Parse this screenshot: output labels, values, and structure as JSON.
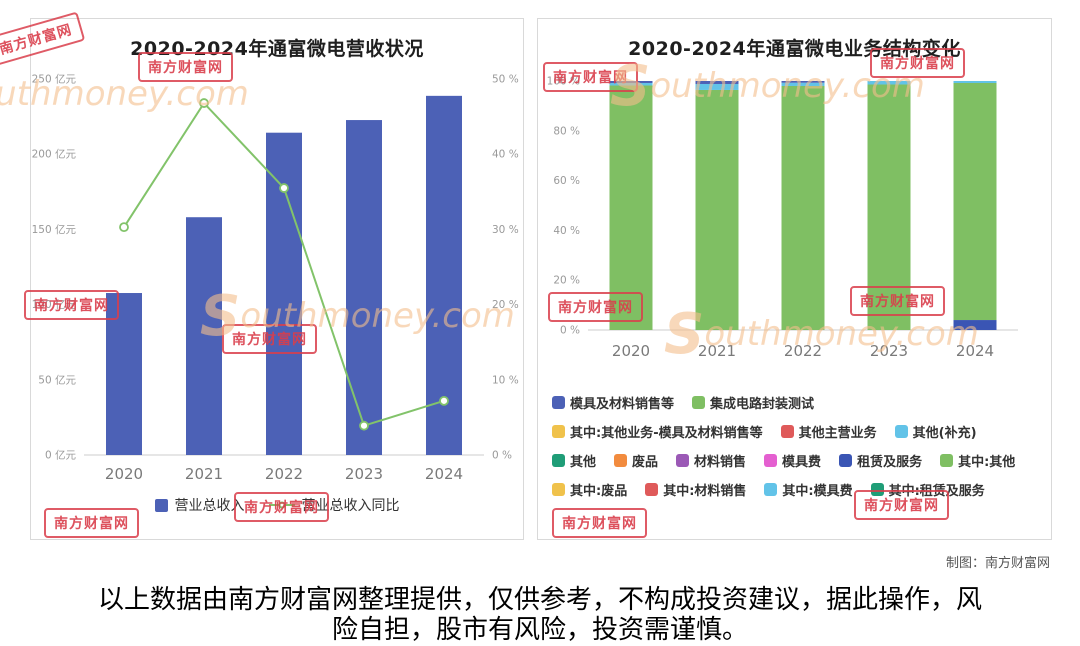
{
  "chart_data": [
    {
      "type": "bar+line",
      "title": "2020-2024年通富微电营收状况",
      "categories": [
        "2020",
        "2021",
        "2022",
        "2023",
        "2024"
      ],
      "series": [
        {
          "name": "营业总收入",
          "type": "bar",
          "axis": "left",
          "unit": "亿元",
          "values": [
            107.7,
            158.1,
            214.3,
            222.7,
            238.8
          ],
          "color": "#4c61b6"
        },
        {
          "name": "营业总收入同比",
          "type": "line",
          "axis": "right",
          "unit": "%",
          "values": [
            30.3,
            46.8,
            35.5,
            3.9,
            7.2
          ],
          "color": "#82c36a"
        }
      ],
      "y_left": {
        "min": 0,
        "max": 250,
        "tick_labels": [
          "0 亿元",
          "50 亿元",
          "100 亿元",
          "150 亿元",
          "200 亿元",
          "250 亿元"
        ]
      },
      "y_right": {
        "min": 0,
        "max": 50,
        "tick_labels": [
          "0 %",
          "10 %",
          "20 %",
          "30 %",
          "40 %",
          "50 %"
        ]
      },
      "grid": false,
      "legend_position": "bottom"
    },
    {
      "type": "stacked-bar",
      "title": "2020-2024年通富微电业务结构变化",
      "categories": [
        "2020",
        "2021",
        "2022",
        "2023",
        "2024"
      ],
      "y": {
        "min": 0,
        "max": 100,
        "tick_labels": [
          "0 %",
          "20 %",
          "40 %",
          "60 %",
          "80 %",
          "100 %"
        ]
      },
      "stacks": [
        [
          {
            "name": "集成电路封装测试",
            "value": 98.2,
            "color": "#7fbf63"
          },
          {
            "name": "其他(补充)",
            "value": 1.0,
            "color": "#62c3e8"
          },
          {
            "name": "模具及材料销售等",
            "value": 0.8,
            "color": "#4c61b6"
          }
        ],
        [
          {
            "name": "集成电路封装测试",
            "value": 96.4,
            "color": "#7fbf63"
          },
          {
            "name": "其他(补充)",
            "value": 2.4,
            "color": "#62c3e8"
          },
          {
            "name": "模具及材料销售等",
            "value": 1.2,
            "color": "#4c61b6"
          }
        ],
        [
          {
            "name": "集成电路封装测试",
            "value": 98.0,
            "color": "#7fbf63"
          },
          {
            "name": "其他(补充)",
            "value": 1.3,
            "color": "#62c3e8"
          },
          {
            "name": "模具及材料销售等",
            "value": 0.7,
            "color": "#4c61b6"
          }
        ],
        [
          {
            "name": "集成电路封装测试",
            "value": 98.6,
            "color": "#7fbf63"
          },
          {
            "name": "其他(补充)",
            "value": 1.4,
            "color": "#62c3e8"
          }
        ],
        [
          {
            "name": "租赁及服务",
            "value": 4.0,
            "color": "#3a55b4"
          },
          {
            "name": "集成电路封装测试",
            "value": 95.2,
            "color": "#7fbf63"
          },
          {
            "name": "其他(补充)",
            "value": 0.8,
            "color": "#62c3e8"
          }
        ]
      ],
      "legend": [
        {
          "label": "模具及材料销售等",
          "color": "#4c61b6"
        },
        {
          "label": "集成电路封装测试",
          "color": "#7fbf63"
        },
        {
          "label": "其中:其他业务-模具及材料销售等",
          "color": "#f0c24b"
        },
        {
          "label": "其他主营业务",
          "color": "#df5a5a"
        },
        {
          "label": "其他(补充)",
          "color": "#62c3e8"
        },
        {
          "label": "其他",
          "color": "#1f9d77"
        },
        {
          "label": "废品",
          "color": "#f28b3e"
        },
        {
          "label": "材料销售",
          "color": "#9b59b6"
        },
        {
          "label": "模具费",
          "color": "#e45fd0"
        },
        {
          "label": "租赁及服务",
          "color": "#3a55b4"
        },
        {
          "label": "其中:其他",
          "color": "#7fbf63"
        },
        {
          "label": "其中:废品",
          "color": "#f0c24b"
        },
        {
          "label": "其中:材料销售",
          "color": "#df5a5a"
        },
        {
          "label": "其中:模具费",
          "color": "#62c3e8"
        },
        {
          "label": "其中:租赁及服务",
          "color": "#1f9d77"
        }
      ],
      "grid": false,
      "legend_position": "bottom"
    }
  ],
  "credit": "制图：南方财富网",
  "disclaimer": "以上数据由南方财富网整理提供，仅供参考，不构成投资建议，据此操作，风险自担，股市有风险，投资需谨慎。",
  "watermarks": {
    "stamp": "南方财富网",
    "site": "Southmoney.com"
  },
  "colors": {
    "bar_blue": "#4c61b6",
    "line_green": "#82c36a",
    "stack_green": "#7fbf63",
    "stack_cyan": "#62c3e8",
    "stack_darkblue": "#3a55b4",
    "stamp_red": "#d93e4b",
    "site_orange": "#f4be8c"
  }
}
